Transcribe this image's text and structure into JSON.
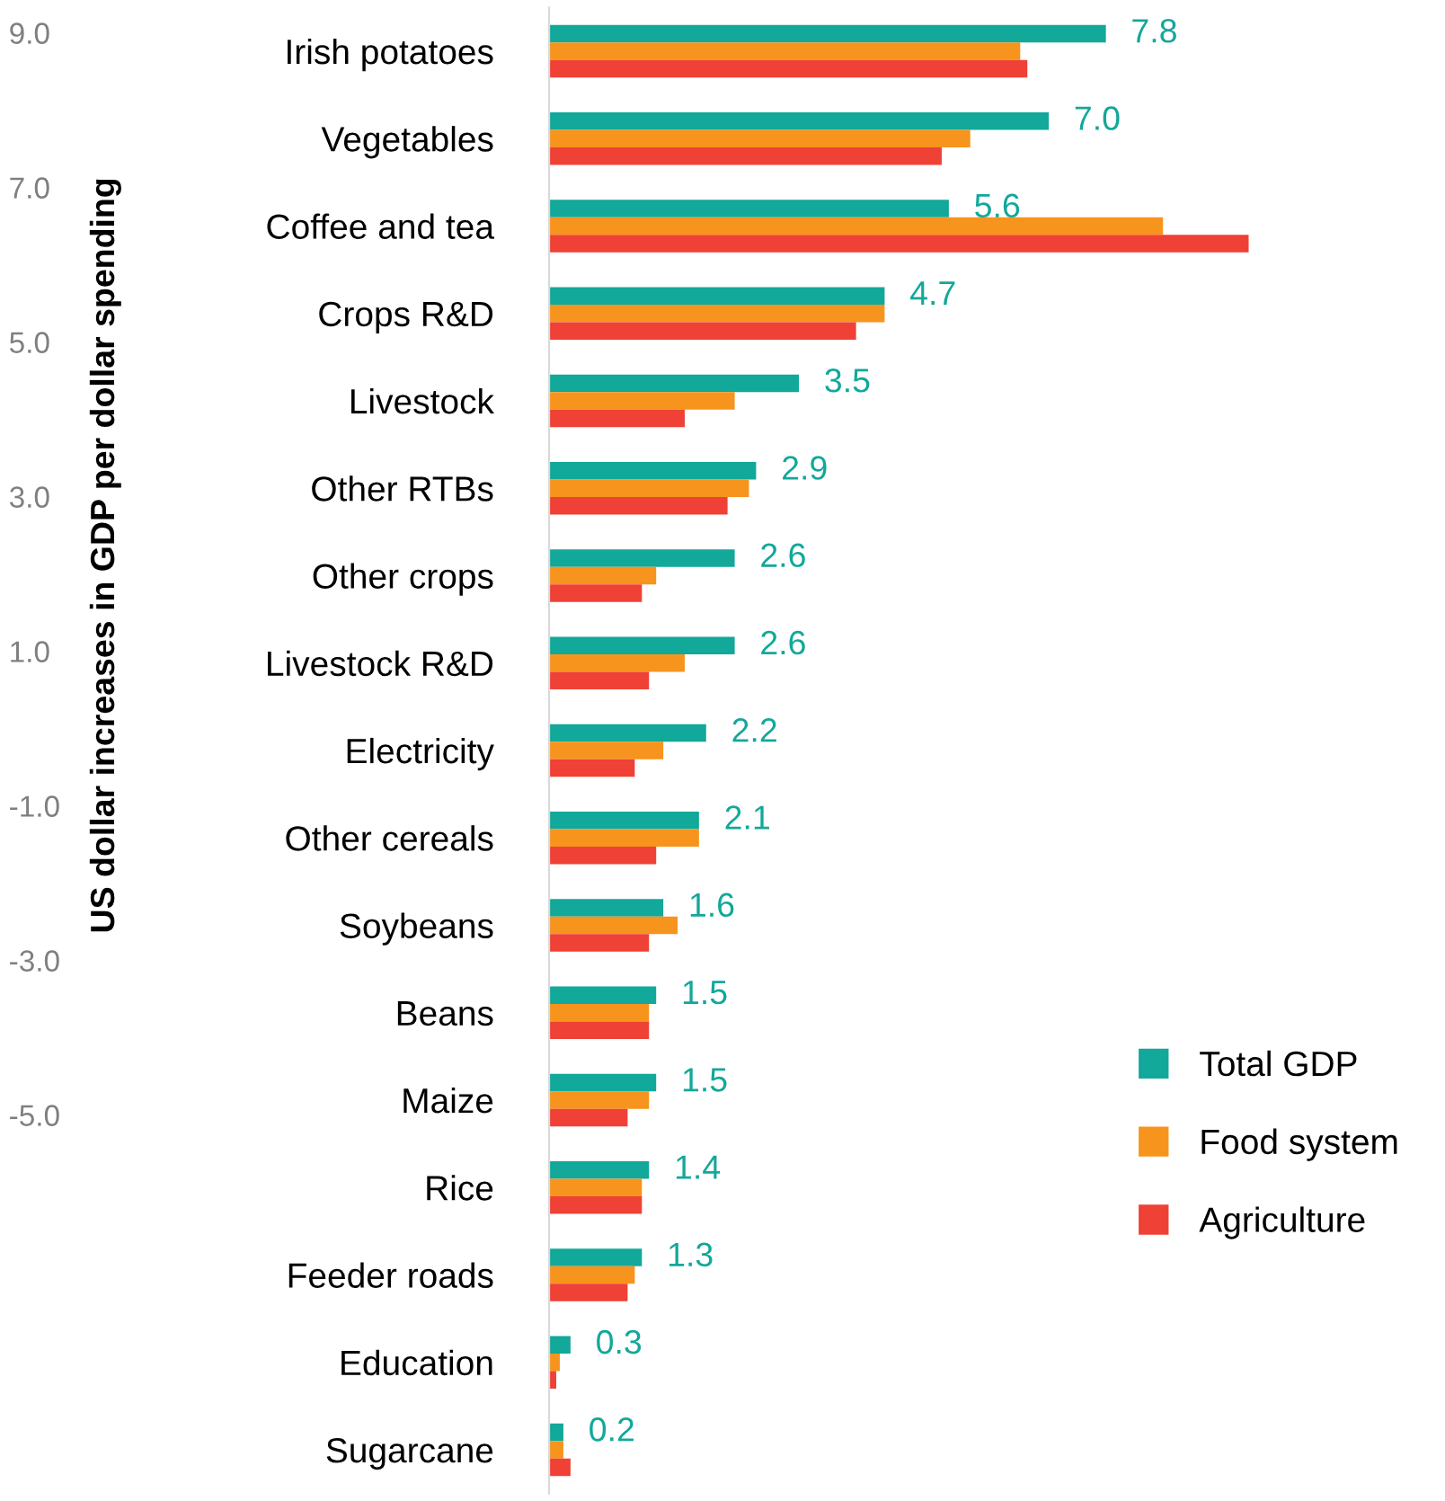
{
  "chart_data": {
    "type": "bar",
    "orientation": "horizontal",
    "ylabel": "US dollar increases in GDP per dollar spending",
    "annotations": [
      "9.0",
      "7.0",
      "5.0",
      "3.0",
      "1.0",
      "-1.0",
      "-3.0",
      "-5.0"
    ],
    "categories": [
      "Irish potatoes",
      "Vegetables",
      "Coffee and tea",
      "Crops R&D",
      "Livestock",
      "Other RTBs",
      "Other crops",
      "Livestock R&D",
      "Electricity",
      "Other cereals",
      "Soybeans",
      "Beans",
      "Maize",
      "Rice",
      "Feeder roads",
      "Education",
      "Sugarcane"
    ],
    "series": [
      {
        "name": "Total GDP",
        "color": "#12a89a",
        "values": [
          7.8,
          7.0,
          5.6,
          4.7,
          3.5,
          2.9,
          2.6,
          2.6,
          2.2,
          2.1,
          1.6,
          1.5,
          1.5,
          1.4,
          1.3,
          0.3,
          0.2
        ],
        "value_labels": [
          "7.8",
          "7.0",
          "5.6",
          "4.7",
          "3.5",
          "2.9",
          "2.6",
          "2.6",
          "2.2",
          "2.1",
          "1.6",
          "1.5",
          "1.5",
          "1.4",
          "1.3",
          "0.3",
          "0.2"
        ]
      },
      {
        "name": "Food system",
        "color": "#f7941d",
        "values": [
          6.6,
          5.9,
          8.6,
          4.7,
          2.6,
          2.8,
          1.5,
          1.9,
          1.6,
          2.1,
          1.8,
          1.4,
          1.4,
          1.3,
          1.2,
          0.15,
          0.2
        ]
      },
      {
        "name": "Agriculture",
        "color": "#ef4136",
        "values": [
          6.7,
          5.5,
          9.8,
          4.3,
          1.9,
          2.5,
          1.3,
          1.4,
          1.2,
          1.5,
          1.4,
          1.4,
          1.1,
          1.3,
          1.1,
          0.1,
          0.3
        ]
      }
    ],
    "legend": "bottom right",
    "grid": false,
    "tick_labels": "y"
  }
}
